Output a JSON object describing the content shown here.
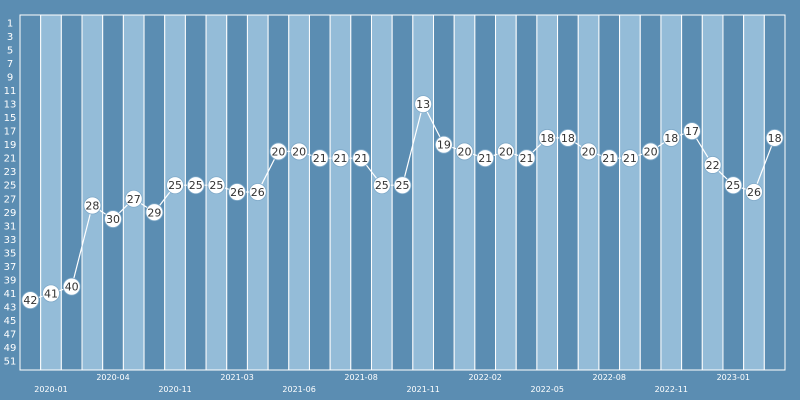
{
  "chart_data": {
    "type": "line",
    "y_reversed": true,
    "ylim": [
      1,
      52
    ],
    "yticks": [
      1,
      3,
      5,
      7,
      9,
      11,
      13,
      15,
      17,
      19,
      21,
      23,
      25,
      27,
      29,
      31,
      33,
      35,
      37,
      39,
      41,
      43,
      45,
      47,
      49,
      51
    ],
    "x_tick_labels": [
      {
        "index": 1,
        "label": "2020-01"
      },
      {
        "index": 4,
        "label": "2020-04"
      },
      {
        "index": 7,
        "label": "2020-11"
      },
      {
        "index": 10,
        "label": "2021-03"
      },
      {
        "index": 13,
        "label": "2021-06"
      },
      {
        "index": 16,
        "label": "2021-08"
      },
      {
        "index": 19,
        "label": "2021-11"
      },
      {
        "index": 22,
        "label": "2022-02"
      },
      {
        "index": 25,
        "label": "2022-05"
      },
      {
        "index": 28,
        "label": "2022-08"
      },
      {
        "index": 31,
        "label": "2022-11"
      },
      {
        "index": 34,
        "label": "2023-01"
      }
    ],
    "series": [
      {
        "values": [
          42,
          41,
          40,
          28,
          30,
          27,
          29,
          25,
          25,
          25,
          26,
          26,
          20,
          20,
          21,
          21,
          21,
          25,
          25,
          13,
          19,
          20,
          21,
          20,
          21,
          18,
          18,
          20,
          21,
          21,
          20,
          18,
          17,
          22,
          25,
          26,
          18
        ]
      }
    ],
    "colors": {
      "background": "#5b8db2",
      "band_light": "#94bcd8",
      "band_dark": "#5b8db2",
      "line": "#ffffff",
      "marker_fill": "#ffffff",
      "label_text": "#333333"
    },
    "grid": false
  }
}
